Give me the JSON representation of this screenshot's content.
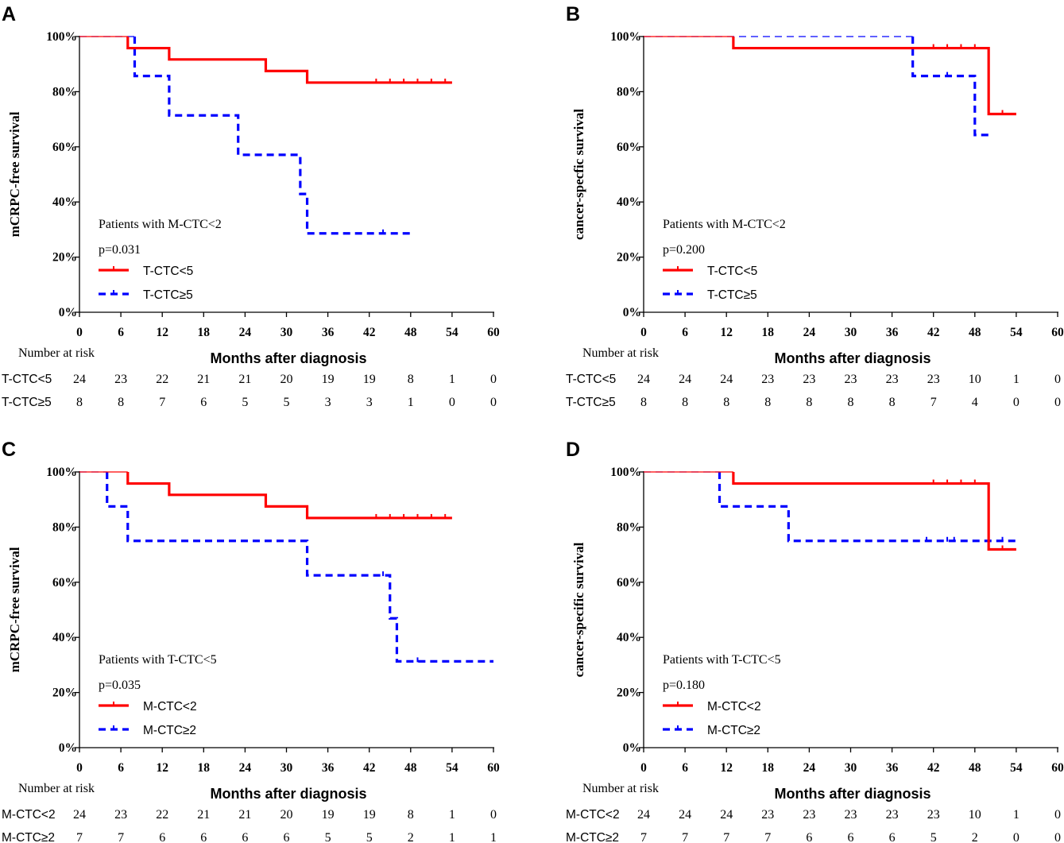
{
  "figure": {
    "xlabel": "Months after diagnosis",
    "number_at_risk_label": "Number at risk",
    "colors": {
      "group1": "#ff0000",
      "group2": "#0000ff",
      "axis": "#000000"
    }
  },
  "chart_data": [
    {
      "type": "line",
      "subtype": "kaplan-meier",
      "panel": "A",
      "ylabel": "mCRPC-free survival",
      "xlabel": "Months after diagnosis",
      "xlim": [
        0,
        60
      ],
      "ylim": [
        0,
        100
      ],
      "xticks": [
        0,
        6,
        12,
        18,
        24,
        30,
        36,
        42,
        48,
        54,
        60
      ],
      "yticks": [
        "0%",
        "20%",
        "40%",
        "60%",
        "80%",
        "100%"
      ],
      "cohort_note": "Patients with M-CTC<2",
      "pvalue": "p=0.031",
      "series": [
        {
          "name": "T-CTC<5",
          "color": "#ff0000",
          "style": "solid",
          "steps": [
            [
              0,
              100
            ],
            [
              7,
              95.8
            ],
            [
              13,
              91.7
            ],
            [
              27,
              87.5
            ],
            [
              33,
              83.3
            ],
            [
              54,
              83.3
            ]
          ],
          "censor": [
            43,
            45,
            47,
            49,
            51,
            53
          ]
        },
        {
          "name": "T-CTC≥5",
          "color": "#0000ff",
          "style": "dashed",
          "steps": [
            [
              0,
              100
            ],
            [
              8,
              85.7
            ],
            [
              13,
              71.4
            ],
            [
              23,
              57.1
            ],
            [
              32,
              42.9
            ],
            [
              33,
              28.6
            ],
            [
              48,
              28.6
            ]
          ],
          "censor": [
            44
          ]
        }
      ],
      "risk_table": {
        "label": "Number at risk",
        "rows": [
          {
            "name": "T-CTC<5",
            "values": [
              24,
              23,
              22,
              21,
              21,
              20,
              19,
              19,
              8,
              1,
              0
            ]
          },
          {
            "name": "T-CTC≥5",
            "values": [
              8,
              8,
              7,
              6,
              5,
              5,
              3,
              3,
              1,
              0,
              0
            ]
          }
        ]
      }
    },
    {
      "type": "line",
      "subtype": "kaplan-meier",
      "panel": "B",
      "ylabel": "cancer-specfic survival",
      "xlabel": "Months after diagnosis",
      "xlim": [
        0,
        60
      ],
      "ylim": [
        0,
        100
      ],
      "xticks": [
        0,
        6,
        12,
        18,
        24,
        30,
        36,
        42,
        48,
        54,
        60
      ],
      "yticks": [
        "0%",
        "20%",
        "40%",
        "60%",
        "80%",
        "100%"
      ],
      "cohort_note": "Patients with M-CTC<2",
      "pvalue": "p=0.200",
      "series": [
        {
          "name": "T-CTC<5",
          "color": "#ff0000",
          "style": "solid",
          "steps": [
            [
              0,
              100
            ],
            [
              13,
              95.8
            ],
            [
              50,
              71.9
            ],
            [
              54,
              71.9
            ]
          ],
          "censor": [
            42,
            44,
            46,
            48,
            52
          ]
        },
        {
          "name": "T-CTC≥5",
          "color": "#0000ff",
          "style": "dashed",
          "steps": [
            [
              0,
              100
            ],
            [
              39,
              85.7
            ],
            [
              48,
              64.3
            ],
            [
              50,
              64.3
            ]
          ],
          "censor": [
            44
          ]
        }
      ],
      "risk_table": {
        "label": "Number at risk",
        "rows": [
          {
            "name": "T-CTC<5",
            "values": [
              24,
              24,
              24,
              23,
              23,
              23,
              23,
              23,
              10,
              1,
              0
            ]
          },
          {
            "name": "T-CTC≥5",
            "values": [
              8,
              8,
              8,
              8,
              8,
              8,
              8,
              7,
              4,
              0,
              0
            ]
          }
        ]
      }
    },
    {
      "type": "line",
      "subtype": "kaplan-meier",
      "panel": "C",
      "ylabel": "mCRPC-free survival",
      "xlabel": "Months after diagnosis",
      "xlim": [
        0,
        60
      ],
      "ylim": [
        0,
        100
      ],
      "xticks": [
        0,
        6,
        12,
        18,
        24,
        30,
        36,
        42,
        48,
        54,
        60
      ],
      "yticks": [
        "0%",
        "20%",
        "40%",
        "60%",
        "80%",
        "100%"
      ],
      "cohort_note": "Patients with T-CTC<5",
      "pvalue": "p=0.035",
      "series": [
        {
          "name": "M-CTC<2",
          "color": "#ff0000",
          "style": "solid",
          "steps": [
            [
              0,
              100
            ],
            [
              7,
              95.8
            ],
            [
              13,
              91.7
            ],
            [
              27,
              87.5
            ],
            [
              33,
              83.3
            ],
            [
              54,
              83.3
            ]
          ],
          "censor": [
            43,
            45,
            47,
            49,
            51,
            53
          ]
        },
        {
          "name": "M-CTC≥2",
          "color": "#0000ff",
          "style": "dashed",
          "steps": [
            [
              0,
              100
            ],
            [
              4,
              87.5
            ],
            [
              7,
              75
            ],
            [
              33,
              62.5
            ],
            [
              45,
              46.9
            ],
            [
              46,
              31.3
            ],
            [
              60,
              31.3
            ]
          ],
          "censor": [
            44,
            49
          ]
        }
      ],
      "risk_table": {
        "label": "Number at risk",
        "rows": [
          {
            "name": "M-CTC<2",
            "values": [
              24,
              23,
              22,
              21,
              21,
              20,
              19,
              19,
              8,
              1,
              0
            ]
          },
          {
            "name": "M-CTC≥2",
            "values": [
              7,
              7,
              6,
              6,
              6,
              6,
              5,
              5,
              2,
              1,
              1
            ]
          }
        ]
      }
    },
    {
      "type": "line",
      "subtype": "kaplan-meier",
      "panel": "D",
      "ylabel": "cancer-specific survival",
      "xlabel": "Months after diagnosis",
      "xlim": [
        0,
        60
      ],
      "ylim": [
        0,
        100
      ],
      "xticks": [
        0,
        6,
        12,
        18,
        24,
        30,
        36,
        42,
        48,
        54,
        60
      ],
      "yticks": [
        "0%",
        "20%",
        "40%",
        "60%",
        "80%",
        "100%"
      ],
      "cohort_note": "Patients with T-CTC<5",
      "pvalue": "p=0.180",
      "series": [
        {
          "name": "M-CTC<2",
          "color": "#ff0000",
          "style": "solid",
          "steps": [
            [
              0,
              100
            ],
            [
              13,
              95.8
            ],
            [
              50,
              71.9
            ],
            [
              54,
              71.9
            ]
          ],
          "censor": [
            42,
            44,
            46,
            48,
            52
          ]
        },
        {
          "name": "M-CTC≥2",
          "color": "#0000ff",
          "style": "dashed",
          "steps": [
            [
              0,
              100
            ],
            [
              11,
              87.5
            ],
            [
              21,
              75
            ],
            [
              54,
              75
            ]
          ],
          "censor": [
            41,
            44,
            45,
            52
          ]
        }
      ],
      "risk_table": {
        "label": "Number at risk",
        "rows": [
          {
            "name": "M-CTC<2",
            "values": [
              24,
              24,
              24,
              23,
              23,
              23,
              23,
              23,
              10,
              1,
              0
            ]
          },
          {
            "name": "M-CTC≥2",
            "values": [
              7,
              7,
              7,
              7,
              6,
              6,
              6,
              5,
              2,
              0,
              0
            ]
          }
        ]
      }
    }
  ]
}
